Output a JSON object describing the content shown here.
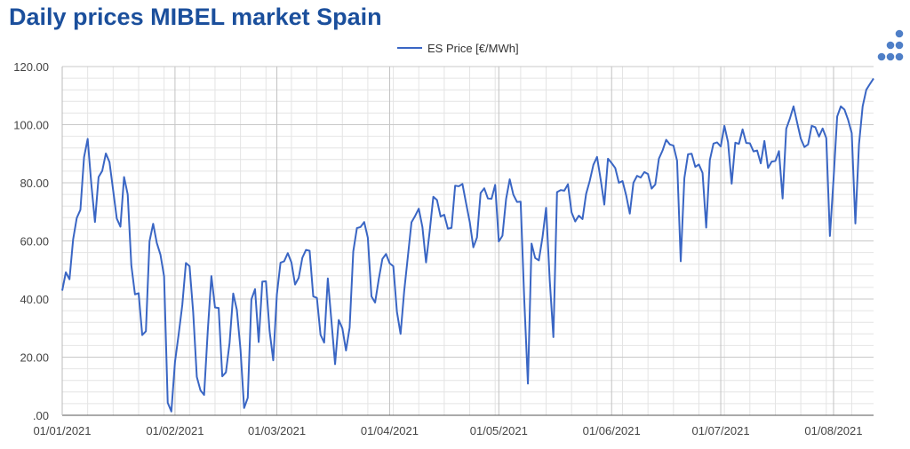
{
  "chart_data": {
    "type": "line",
    "title": "Daily prices MIBEL market Spain",
    "xlabel": "",
    "ylabel": "",
    "ylim": [
      0,
      120
    ],
    "yticks": [
      ".00",
      "20.00",
      "40.00",
      "60.00",
      "80.00",
      "100.00",
      "120.00"
    ],
    "xticks": [
      "01/01/2021",
      "01/02/2021",
      "01/03/2021",
      "01/04/2021",
      "01/05/2021",
      "01/06/2021",
      "01/07/2021",
      "01/08/2021"
    ],
    "xtick_days": [
      0,
      31,
      59,
      90,
      120,
      151,
      181,
      212
    ],
    "grid": true,
    "legend": "top-center",
    "colors": {
      "series": "#3a66c4",
      "title": "#1b4f9c",
      "logo": "#4f7fc7"
    },
    "logo_icon": "dots-logo-icon",
    "series": [
      {
        "name": "ES Price [€/MWh]",
        "x_start": "01/01/2021",
        "x_step_days": 1,
        "values": [
          42.9,
          49.2,
          46.8,
          60.5,
          67.9,
          70.7,
          88.8,
          95.1,
          79.6,
          66.5,
          82.0,
          84.1,
          90.1,
          87.1,
          77.4,
          67.7,
          64.9,
          82.0,
          76.0,
          51.6,
          41.6,
          42.0,
          27.6,
          28.9,
          59.9,
          65.9,
          59.3,
          55.3,
          47.8,
          4.3,
          1.3,
          18.4,
          27.8,
          37.9,
          52.4,
          51.3,
          35.4,
          13.2,
          8.6,
          7.0,
          28.9,
          47.9,
          37.1,
          36.9,
          13.4,
          14.8,
          24.9,
          41.9,
          36.3,
          22.7,
          2.5,
          6.0,
          39.9,
          43.4,
          25.2,
          46.0,
          46.1,
          29.0,
          18.9,
          41.6,
          52.5,
          53.0,
          55.8,
          52.6,
          45.0,
          47.3,
          54.2,
          56.9,
          56.6,
          40.9,
          40.4,
          27.7,
          25.0,
          47.1,
          32.4,
          17.6,
          32.8,
          29.9,
          22.3,
          30.2,
          56.4,
          64.4,
          64.8,
          66.5,
          61.1,
          40.9,
          38.8,
          46.8,
          53.8,
          55.5,
          52.3,
          51.3,
          35.6,
          28.0,
          42.8,
          54.6,
          66.4,
          68.6,
          71.1,
          64.8,
          52.6,
          63.3,
          75.2,
          74.1,
          68.4,
          69.0,
          64.2,
          64.5,
          79.0,
          78.8,
          79.6,
          73.0,
          66.6,
          57.8,
          61.2,
          76.5,
          78.1,
          74.6,
          74.5,
          79.3,
          59.8,
          61.8,
          74.4,
          81.2,
          75.9,
          73.4,
          73.5,
          39.6,
          10.9,
          59.1,
          54.1,
          53.3,
          61.2,
          71.4,
          46.4,
          26.9,
          76.8,
          77.5,
          77.3,
          79.5,
          69.8,
          66.7,
          68.7,
          67.5,
          76.2,
          80.7,
          86.2,
          88.9,
          81.1,
          72.5,
          88.3,
          86.8,
          85.1,
          80.0,
          80.6,
          75.7,
          69.4,
          80.0,
          82.4,
          81.8,
          83.7,
          83.0,
          78.0,
          79.4,
          88.3,
          91.1,
          94.8,
          93.2,
          92.8,
          87.6,
          53.0,
          81.6,
          89.8,
          90.0,
          85.5,
          86.3,
          83.4,
          64.6,
          87.8,
          93.5,
          93.9,
          92.5,
          99.6,
          94.0,
          79.7,
          93.8,
          93.4,
          98.4,
          93.7,
          93.6,
          90.8,
          91.1,
          86.7,
          94.4,
          85.1,
          87.3,
          87.5,
          90.9,
          74.6,
          98.6,
          102.1,
          106.3,
          100.7,
          95.2,
          92.3,
          93.2,
          99.6,
          99.1,
          95.9,
          98.7,
          95.4,
          61.7,
          81.2,
          102.8,
          106.3,
          105.2,
          101.7,
          97.1,
          66.0,
          93.3,
          106.3,
          112.0,
          114.0,
          115.9
        ]
      }
    ]
  }
}
